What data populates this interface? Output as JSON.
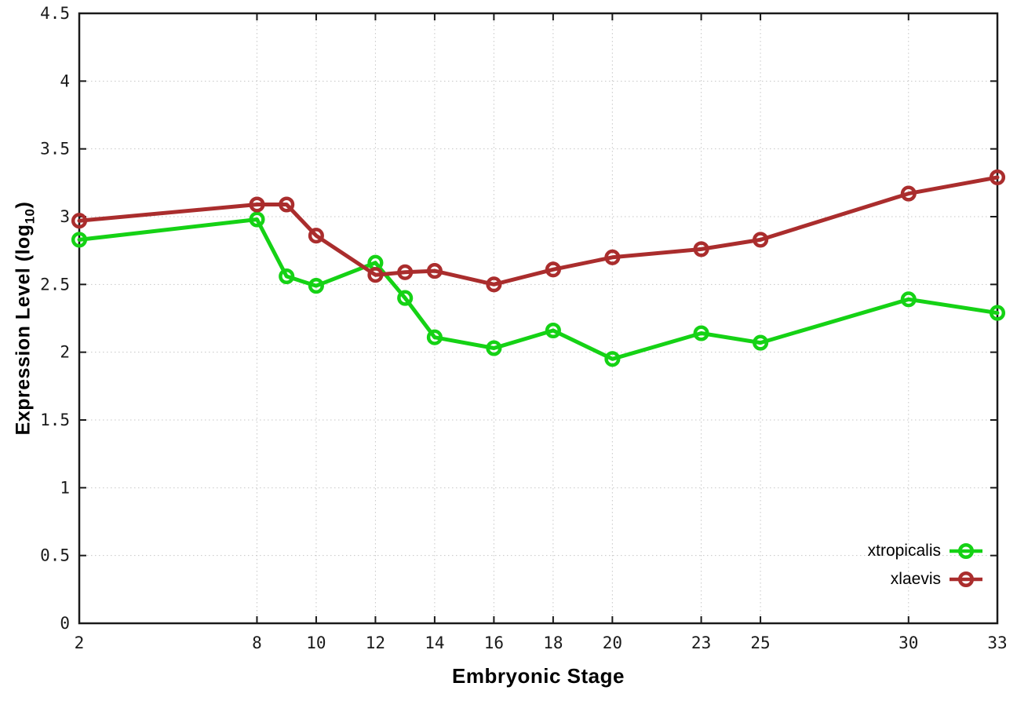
{
  "chart_data": {
    "type": "line",
    "title": "",
    "xlabel": "Embryonic Stage",
    "ylabel": "Expression Level (log10)",
    "ylabel_main": "Expression Level (log",
    "ylabel_sub": "10",
    "ylabel_end": ")",
    "x": [
      2,
      8,
      9,
      10,
      12,
      13,
      14,
      16,
      18,
      20,
      23,
      25,
      30,
      33
    ],
    "series": [
      {
        "name": "xtropicalis",
        "color": "#15d215",
        "values": [
          2.83,
          2.98,
          2.56,
          2.49,
          2.66,
          2.4,
          2.11,
          2.03,
          2.16,
          1.95,
          2.14,
          2.07,
          2.39,
          2.29
        ]
      },
      {
        "name": "xlaevis",
        "color": "#aa2d2d",
        "values": [
          2.97,
          3.09,
          3.09,
          2.86,
          2.57,
          2.59,
          2.6,
          2.5,
          2.61,
          2.7,
          2.76,
          2.83,
          3.17,
          3.29
        ]
      }
    ],
    "xlim": [
      2,
      33
    ],
    "ylim": [
      0,
      4.5
    ],
    "xticks": [
      2,
      8,
      10,
      12,
      14,
      16,
      18,
      20,
      23,
      25,
      30,
      33
    ],
    "xtick_labels": [
      "2",
      "8",
      "10",
      "12",
      "14",
      "16",
      "18",
      "20",
      "23",
      "25",
      "30",
      "33"
    ],
    "yticks": [
      0,
      0.5,
      1,
      1.5,
      2,
      2.5,
      3,
      3.5,
      4,
      4.5
    ],
    "ytick_labels": [
      "0",
      "0.5",
      "1",
      "1.5",
      "2",
      "2.5",
      "3",
      "3.5",
      "4",
      "4.5"
    ],
    "grid": true,
    "legend_position": "bottom-right",
    "colors": {
      "border": "#1a1a1a",
      "grid": "#c6c6c6",
      "background": "#ffffff",
      "text": "#000000"
    }
  },
  "legend": {
    "items": [
      {
        "label": "xtropicalis"
      },
      {
        "label": "xlaevis"
      }
    ]
  }
}
